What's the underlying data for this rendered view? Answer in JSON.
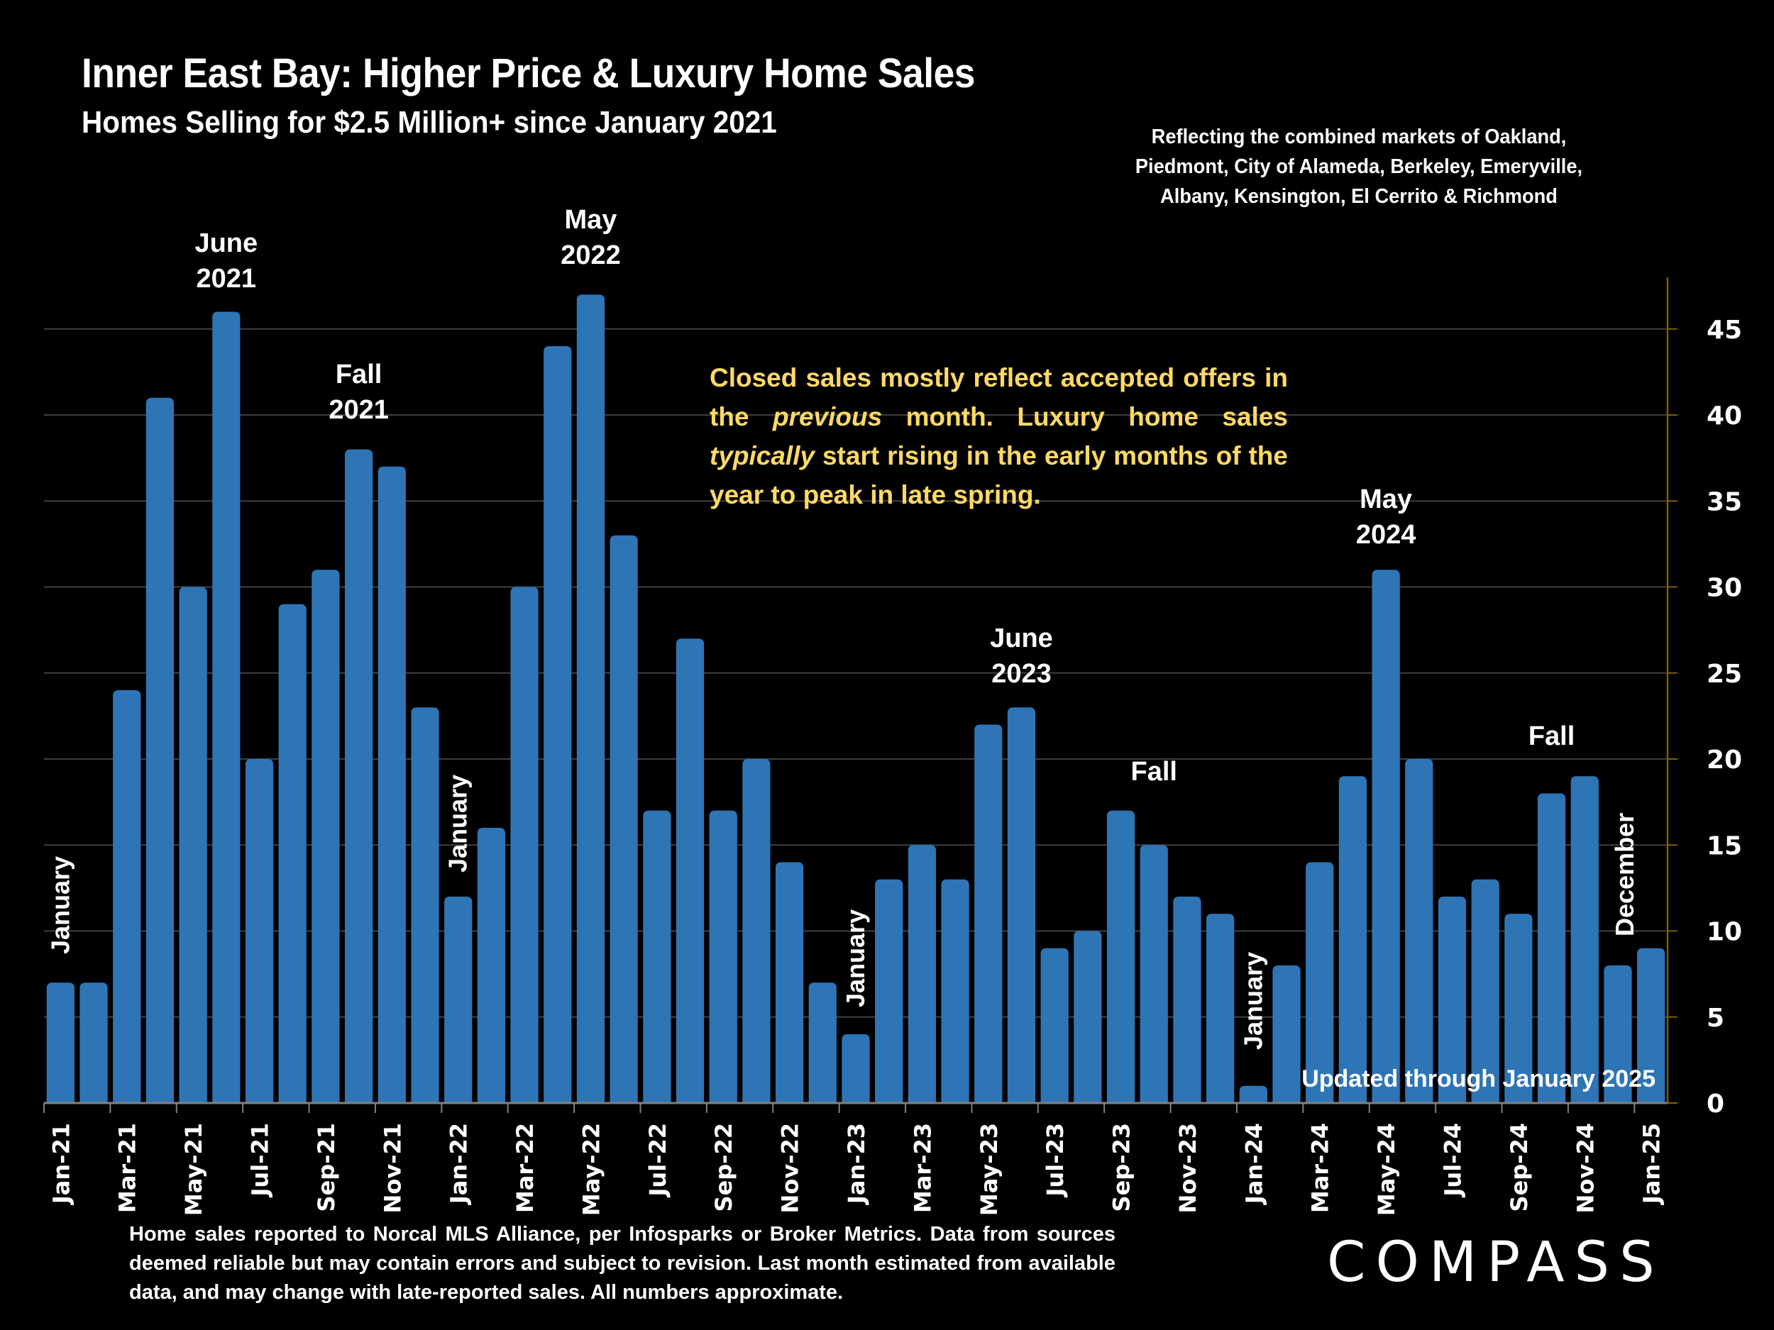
{
  "header": {
    "title": "Inner East Bay: Higher Price & Luxury Home Sales",
    "subtitle": "Homes Selling for $2.5 Million+ since January 2021",
    "region_note": "Reflecting the combined markets of Oakland, Piedmont, City of Alameda, Berkeley, Emeryville, Albany, Kensington, El Cerrito & Richmond"
  },
  "callout": {
    "part1": "Closed sales mostly reflect accepted offers in the ",
    "italic1": "previous",
    "part2": " month. Luxury home sales ",
    "italic2": "typically",
    "part3": " start rising in the early months of the year to peak in late spring."
  },
  "footer": {
    "disclaimer": "Home sales reported to Norcal MLS Alliance, per Infosparks or Broker Metrics. Data from sources deemed reliable but may contain errors and subject to revision.  Last month estimated from available data, and may change with late-reported sales. All numbers approximate.",
    "brand": "COMPASS"
  },
  "colors": {
    "background": "#000000",
    "bar": "#2e75b6",
    "gridline": "#404040",
    "axis": "#7f6000",
    "callout": "#ffd966",
    "text": "#ffffff"
  },
  "chart_data": {
    "type": "bar",
    "title": "Inner East Bay: Higher Price & Luxury Home Sales",
    "subtitle": "Homes Selling for $2.5 Million+ since January 2021",
    "xlabel": "",
    "ylabel": "",
    "ylim": [
      0,
      48
    ],
    "yticks": [
      0,
      5,
      10,
      15,
      20,
      25,
      30,
      35,
      40,
      45
    ],
    "y_axis_position": "right",
    "grid": true,
    "legend": "none",
    "categories": [
      "Jan-21",
      "Feb-21",
      "Mar-21",
      "Apr-21",
      "May-21",
      "Jun-21",
      "Jul-21",
      "Aug-21",
      "Sep-21",
      "Oct-21",
      "Nov-21",
      "Dec-21",
      "Jan-22",
      "Feb-22",
      "Mar-22",
      "Apr-22",
      "May-22",
      "Jun-22",
      "Jul-22",
      "Aug-22",
      "Sep-22",
      "Oct-22",
      "Nov-22",
      "Dec-22",
      "Jan-23",
      "Feb-23",
      "Mar-23",
      "Apr-23",
      "May-23",
      "Jun-23",
      "Jul-23",
      "Aug-23",
      "Sep-23",
      "Oct-23",
      "Nov-23",
      "Dec-23",
      "Jan-24",
      "Feb-24",
      "Mar-24",
      "Apr-24",
      "May-24",
      "Jun-24",
      "Jul-24",
      "Aug-24",
      "Sep-24",
      "Oct-24",
      "Nov-24",
      "Dec-24",
      "Jan-25"
    ],
    "tick_labels_every": 2,
    "values": [
      7,
      7,
      24,
      41,
      30,
      46,
      20,
      29,
      31,
      38,
      37,
      23,
      12,
      16,
      30,
      44,
      47,
      33,
      17,
      27,
      17,
      20,
      14,
      7,
      4,
      13,
      15,
      13,
      22,
      23,
      9,
      10,
      17,
      15,
      12,
      11,
      1,
      8,
      14,
      19,
      31,
      20,
      12,
      13,
      11,
      18,
      19,
      8,
      9
    ],
    "annotations": [
      {
        "text": "January",
        "category": "Jan-21",
        "rotated": true
      },
      {
        "text": "June\n2021",
        "category": "Jun-21",
        "rotated": false
      },
      {
        "text": "Fall\n2021",
        "category": "Oct-21",
        "rotated": false
      },
      {
        "text": "January",
        "category": "Jan-22",
        "rotated": true
      },
      {
        "text": "May\n2022",
        "category": "May-22",
        "rotated": false
      },
      {
        "text": "January",
        "category": "Jan-23",
        "rotated": true
      },
      {
        "text": "June\n2023",
        "category": "Jun-23",
        "rotated": false
      },
      {
        "text": "Fall",
        "category": "Oct-23",
        "rotated": false
      },
      {
        "text": "January",
        "category": "Jan-24",
        "rotated": true
      },
      {
        "text": "May\n2024",
        "category": "May-24",
        "rotated": false
      },
      {
        "text": "Fall",
        "category": "Oct-24",
        "rotated": false
      },
      {
        "text": "December",
        "category": "Dec-24",
        "rotated": true
      },
      {
        "text": "Updated through January 2025",
        "category": "Jan-25",
        "rotated": false
      }
    ]
  }
}
